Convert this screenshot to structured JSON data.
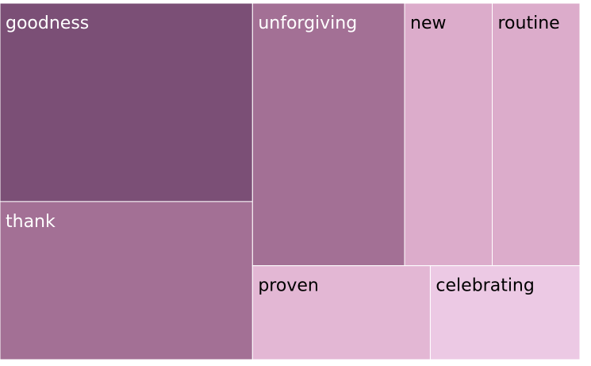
{
  "chart_data": {
    "type": "treemap",
    "title": "",
    "items": [
      {
        "label": "goodness",
        "value": 24.6,
        "color": "#7b4f76",
        "text_color": "#ffffff"
      },
      {
        "label": "thank",
        "value": 19.6,
        "color": "#a37095",
        "text_color": "#ffffff"
      },
      {
        "label": "unforgiving",
        "value": 19.6,
        "color": "#a37095",
        "text_color": "#ffffff"
      },
      {
        "label": "new",
        "value": 11.3,
        "color": "#dcaccb",
        "text_color": "#000000"
      },
      {
        "label": "routine",
        "value": 11.3,
        "color": "#dcaccb",
        "text_color": "#000000"
      },
      {
        "label": "proven",
        "value": 8.2,
        "color": "#e3b7d4",
        "text_color": "#000000"
      },
      {
        "label": "celebrating",
        "value": 6.9,
        "color": "#ecc9e4",
        "text_color": "#000000"
      }
    ]
  }
}
